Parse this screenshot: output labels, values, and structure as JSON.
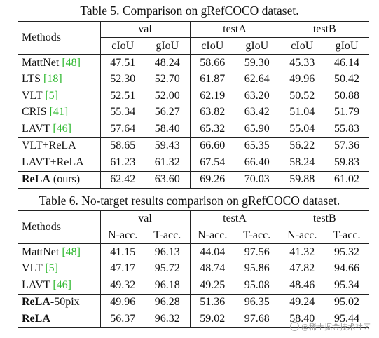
{
  "table5": {
    "caption": "Table 5. Comparison on gRefCOCO dataset.",
    "methods_header": "Methods",
    "groups": [
      "val",
      "testA",
      "testB"
    ],
    "metrics": [
      "cIoU",
      "gIoU",
      "cIoU",
      "gIoU",
      "cIoU",
      "gIoU"
    ],
    "rows": [
      {
        "name": "MattNet ",
        "ref": "[48]",
        "suffix": "",
        "values": [
          "47.51",
          "48.24",
          "58.66",
          "59.30",
          "45.33",
          "46.14"
        ]
      },
      {
        "name": "LTS ",
        "ref": "[18]",
        "suffix": "",
        "values": [
          "52.30",
          "52.70",
          "61.87",
          "62.64",
          "49.96",
          "50.42"
        ]
      },
      {
        "name": "VLT ",
        "ref": "[5]",
        "suffix": "",
        "values": [
          "52.51",
          "52.00",
          "62.19",
          "63.20",
          "50.52",
          "50.88"
        ]
      },
      {
        "name": "CRIS ",
        "ref": "[41]",
        "suffix": "",
        "values": [
          "55.34",
          "56.27",
          "63.82",
          "63.42",
          "51.04",
          "51.79"
        ]
      },
      {
        "name": "LAVT ",
        "ref": "[46]",
        "suffix": "",
        "values": [
          "57.64",
          "58.40",
          "65.32",
          "65.90",
          "55.04",
          "55.83"
        ]
      },
      {
        "name": "VLT+ReLA",
        "ref": "",
        "suffix": "",
        "values": [
          "58.65",
          "59.43",
          "66.60",
          "65.35",
          "56.22",
          "57.36"
        ]
      },
      {
        "name": "LAVT+ReLA",
        "ref": "",
        "suffix": "",
        "values": [
          "61.23",
          "61.32",
          "67.54",
          "66.40",
          "58.24",
          "59.83"
        ]
      },
      {
        "name": "ReLA",
        "ref": "",
        "suffix": " (ours)",
        "values": [
          "62.42",
          "63.60",
          "69.26",
          "70.03",
          "59.88",
          "61.02"
        ]
      }
    ]
  },
  "table6": {
    "caption": "Table 6. No-target results comparison on gRefCOCO dataset.",
    "methods_header": "Methods",
    "groups": [
      "val",
      "testA",
      "testB"
    ],
    "metrics": [
      "N-acc.",
      "T-acc.",
      "N-acc.",
      "T-acc.",
      "N-acc.",
      "T-acc."
    ],
    "rows": [
      {
        "name": "MattNet ",
        "ref": "[48]",
        "suffix": "",
        "values": [
          "41.15",
          "96.13",
          "44.04",
          "97.56",
          "41.32",
          "95.32"
        ]
      },
      {
        "name": "VLT ",
        "ref": "[5]",
        "suffix": "",
        "values": [
          "47.17",
          "95.72",
          "48.74",
          "95.86",
          "47.82",
          "94.66"
        ]
      },
      {
        "name": "LAVT ",
        "ref": "[46]",
        "suffix": "",
        "values": [
          "49.32",
          "96.18",
          "49.25",
          "95.08",
          "48.46",
          "95.34"
        ]
      },
      {
        "name": "ReLA",
        "ref": "",
        "suffix": "-50pix",
        "values": [
          "49.96",
          "96.28",
          "51.36",
          "96.35",
          "49.24",
          "95.02"
        ]
      },
      {
        "name": "ReLA",
        "ref": "",
        "suffix": "",
        "values": [
          "56.37",
          "96.32",
          "59.02",
          "97.68",
          "58.40",
          "95.44"
        ]
      }
    ]
  },
  "watermark": "@稀土掘金技术社区"
}
